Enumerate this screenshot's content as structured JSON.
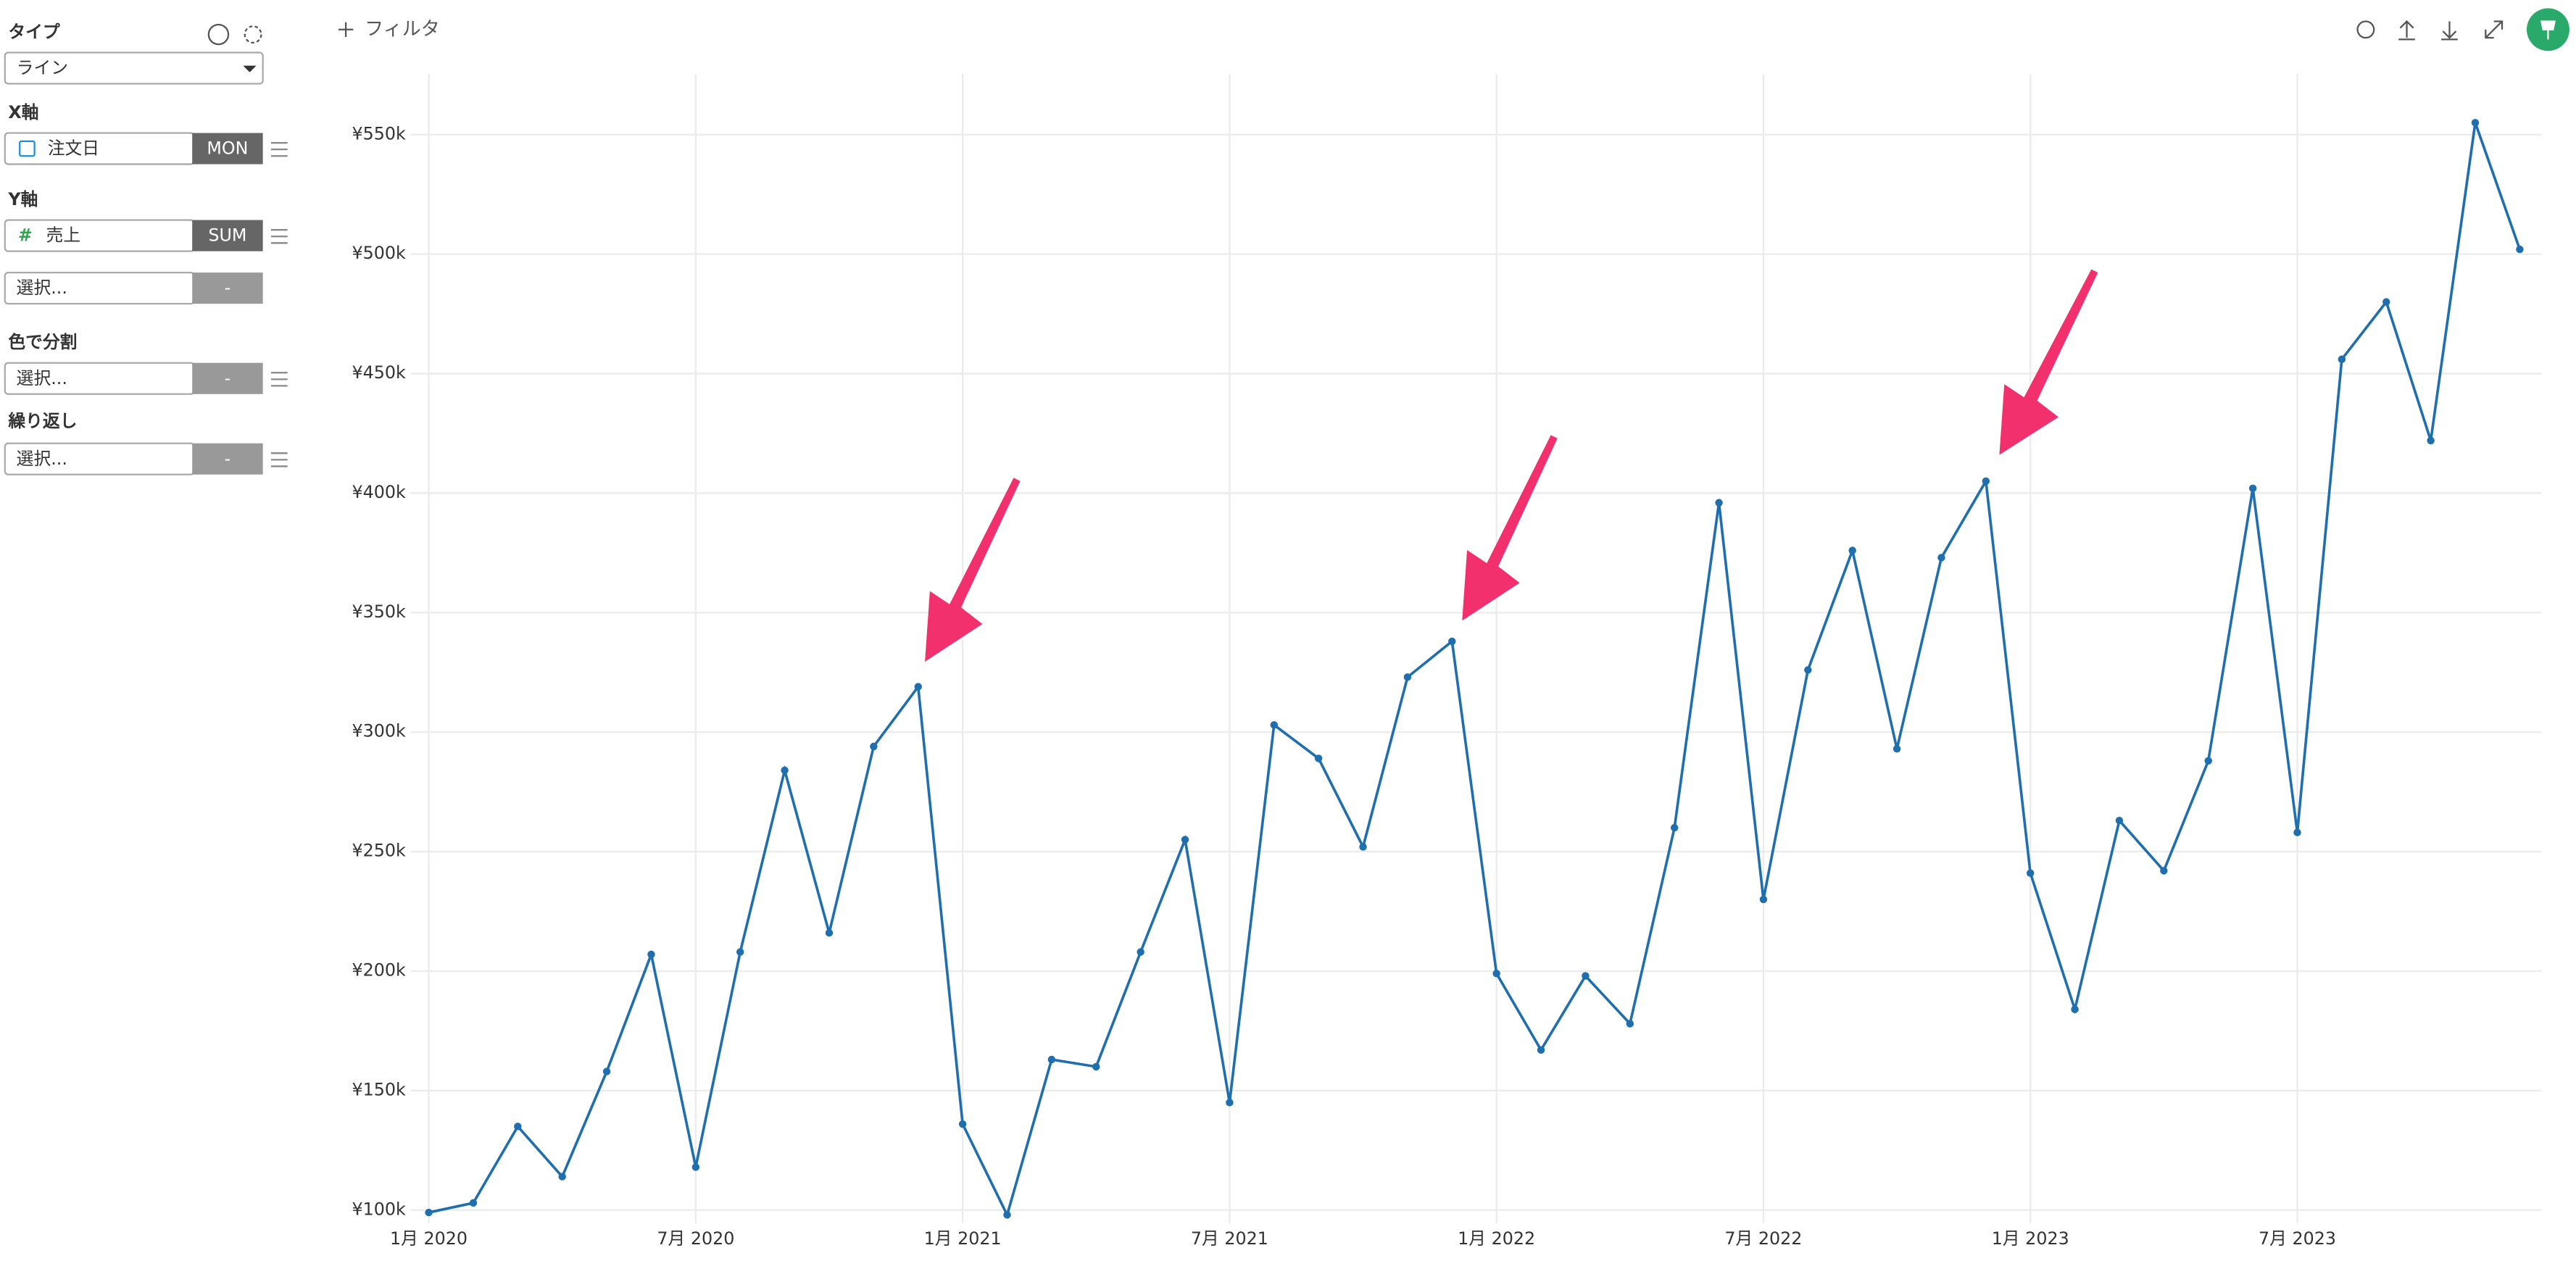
{
  "sidebar": {
    "type_label": "タイプ",
    "type_value": "ライン",
    "x_label": "X軸",
    "x_field": "注文日",
    "x_agg": "MON",
    "y_label": "Y軸",
    "y_field": "売上",
    "y_agg": "SUM",
    "y2_field": "選択...",
    "y2_agg": "-",
    "color_label": "色で分割",
    "color_field": "選択...",
    "color_agg": "-",
    "repeat_label": "繰り返し",
    "repeat_field": "選択...",
    "repeat_agg": "-"
  },
  "toolbar": {
    "filter": "フィルタ"
  },
  "chart_data": {
    "type": "line",
    "color": "#1f6fae",
    "x": [
      "2020-01",
      "2020-02",
      "2020-03",
      "2020-04",
      "2020-05",
      "2020-06",
      "2020-07",
      "2020-08",
      "2020-09",
      "2020-10",
      "2020-11",
      "2020-12",
      "2021-01",
      "2021-02",
      "2021-03",
      "2021-04",
      "2021-05",
      "2021-06",
      "2021-07",
      "2021-08",
      "2021-09",
      "2021-10",
      "2021-11",
      "2021-12",
      "2022-01",
      "2022-02",
      "2022-03",
      "2022-04",
      "2022-05",
      "2022-06",
      "2022-07",
      "2022-08",
      "2022-09",
      "2022-10",
      "2022-11",
      "2022-12",
      "2023-01",
      "2023-02",
      "2023-03",
      "2023-04",
      "2023-05",
      "2023-06",
      "2023-07",
      "2023-08",
      "2023-09",
      "2023-10",
      "2023-11",
      "2023-12"
    ],
    "values": [
      99000,
      103000,
      135000,
      114000,
      158000,
      207000,
      118000,
      208000,
      284000,
      216000,
      294000,
      319000,
      136000,
      98000,
      163000,
      160000,
      208000,
      255000,
      145000,
      303000,
      289000,
      252000,
      323000,
      338000,
      199000,
      167000,
      198000,
      178000,
      260000,
      396000,
      230000,
      326000,
      376000,
      293000,
      373000,
      405000,
      241000,
      184000,
      263000,
      242000,
      288000,
      402000,
      258000,
      456000,
      480000,
      422000,
      555000,
      502000
    ],
    "ylim": [
      100000,
      550000
    ],
    "yticks": [
      {
        "value": 100000,
        "label": "¥100k"
      },
      {
        "value": 150000,
        "label": "¥150k"
      },
      {
        "value": 200000,
        "label": "¥200k"
      },
      {
        "value": 250000,
        "label": "¥250k"
      },
      {
        "value": 300000,
        "label": "¥300k"
      },
      {
        "value": 350000,
        "label": "¥350k"
      },
      {
        "value": 400000,
        "label": "¥400k"
      },
      {
        "value": 450000,
        "label": "¥450k"
      },
      {
        "value": 500000,
        "label": "¥500k"
      },
      {
        "value": 550000,
        "label": "¥550k"
      }
    ],
    "xticks": [
      {
        "value": "2020-01",
        "label": "1月 2020"
      },
      {
        "value": "2020-07",
        "label": "7月 2020"
      },
      {
        "value": "2021-01",
        "label": "1月 2021"
      },
      {
        "value": "2021-07",
        "label": "7月 2021"
      },
      {
        "value": "2022-01",
        "label": "1月 2022"
      },
      {
        "value": "2022-07",
        "label": "7月 2022"
      },
      {
        "value": "2023-01",
        "label": "1月 2023"
      },
      {
        "value": "2023-07",
        "label": "7月 2023"
      }
    ],
    "grid": true
  }
}
